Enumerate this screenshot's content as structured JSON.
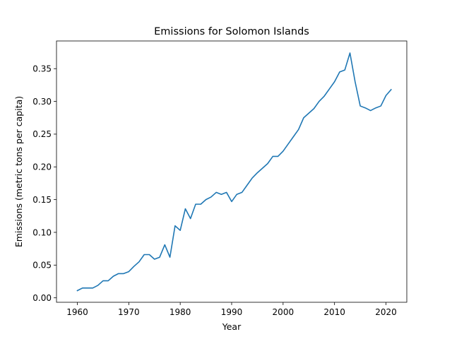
{
  "chart_data": {
    "type": "line",
    "title": "Emissions for Solomon Islands",
    "xlabel": "Year",
    "ylabel": "Emissions (metric tons per capita)",
    "xlim": [
      1955.95,
      2024.05
    ],
    "ylim": [
      -0.0068,
      0.3923
    ],
    "xticks": [
      1960,
      1970,
      1980,
      1990,
      2000,
      2010,
      2020
    ],
    "yticks": [
      0.0,
      0.05,
      0.1,
      0.15,
      0.2,
      0.25,
      0.3,
      0.35
    ],
    "grid": false,
    "line_color": "#1f77b4",
    "series": [
      {
        "x": [
          1960,
          1961,
          1962,
          1963,
          1964,
          1965,
          1966,
          1967,
          1968,
          1969,
          1970,
          1971,
          1972,
          1973,
          1974,
          1975,
          1976,
          1977,
          1978,
          1979,
          1980,
          1981,
          1982,
          1983,
          1984,
          1985,
          1986,
          1987,
          1988,
          1989,
          1990,
          1991,
          1992,
          1993,
          1994,
          1995,
          1996,
          1997,
          1998,
          1999,
          2000,
          2001,
          2002,
          2003,
          2004,
          2005,
          2006,
          2007,
          2008,
          2009,
          2010,
          2011,
          2012,
          2013,
          2014,
          2015,
          2016,
          2017,
          2018,
          2019,
          2020,
          2021
        ],
        "values": [
          0.011,
          0.015,
          0.015,
          0.015,
          0.019,
          0.026,
          0.026,
          0.033,
          0.037,
          0.037,
          0.04,
          0.048,
          0.055,
          0.066,
          0.066,
          0.059,
          0.062,
          0.081,
          0.062,
          0.11,
          0.103,
          0.136,
          0.121,
          0.143,
          0.143,
          0.15,
          0.154,
          0.161,
          0.158,
          0.161,
          0.147,
          0.158,
          0.161,
          0.172,
          0.183,
          0.191,
          0.198,
          0.205,
          0.216,
          0.216,
          0.224,
          0.235,
          0.246,
          0.257,
          0.275,
          0.282,
          0.289,
          0.3,
          0.308,
          0.319,
          0.33,
          0.345,
          0.348,
          0.374,
          0.33,
          0.293,
          0.29,
          0.286,
          0.29,
          0.293,
          0.309,
          0.318
        ]
      }
    ]
  }
}
